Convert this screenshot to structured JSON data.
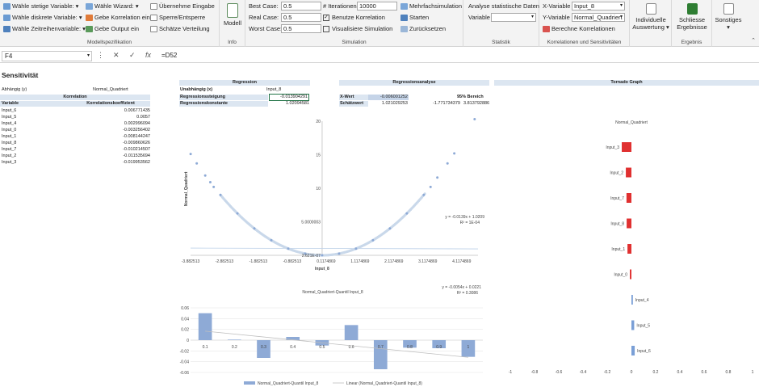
{
  "ribbon": {
    "modell": {
      "items": [
        "Wähle stetige Variable:",
        "Wähle diskrete Variable:",
        "Wähle Zeitreihenvariable:",
        "Wähle Wizard:",
        "Gebe Korrelation ein",
        "Gebe Output ein",
        "Übernehme Eingabe",
        "Sperre/Entsperre",
        "Schätze Verteilung"
      ],
      "label": "Modellspezifikation"
    },
    "info": {
      "button": "Modell",
      "label": "Info"
    },
    "simulation": {
      "best_case_label": "Best Case:",
      "best_case_value": "0.5",
      "real_case_label": "Real Case:",
      "real_case_value": "0.5",
      "worst_case_label": "Worst Case:",
      "worst_case_value": "0.5",
      "iter_label": "# Iterationen:",
      "iter_value": "10000",
      "korr_check": "Benutze Korrelation",
      "vis_check": "Visualisiere Simulation",
      "mehrfach": "Mehrfachsimulation",
      "starten": "Starten",
      "zurueck": "Zurücksetzen",
      "label": "Simulation"
    },
    "statistik": {
      "title": "Analyse statistische Daten",
      "variable_label": "Variable",
      "label": "Statistik"
    },
    "korrelationen": {
      "x_label": "X-Variable",
      "x_value": "Input_8",
      "y_label": "Y-Variable",
      "y_value": "Normal_Quadriert",
      "berechne": "Berechne Korrelationen",
      "label": "Korrelationen und Sensitivitäten"
    },
    "auswertung": {
      "button_line1": "Individuelle",
      "button_line2": "Auswertung"
    },
    "ergebnis": {
      "button_line1": "Schliesse",
      "button_line2": "Ergebnisse",
      "label": "Ergebnis"
    },
    "sonstiges": {
      "button": "Sonstiges"
    }
  },
  "formula_bar": {
    "name_box": "F4",
    "fx": "fx",
    "formula": "=D52"
  },
  "sheet": {
    "title": "Sensitivität",
    "abh_label": "Abhängig (y)",
    "abh_value": "Normal_Quadriert",
    "korr_header": "Korrelation",
    "col_variable": "Variable",
    "col_koeff": "Korrelationskoeffizient",
    "rows": [
      {
        "name": "Input_6",
        "value": "0.006771435"
      },
      {
        "name": "Input_5",
        "value": "0.0057"
      },
      {
        "name": "Input_4",
        "value": "0.002996094"
      },
      {
        "name": "Input_0",
        "value": "-0.003256402"
      },
      {
        "name": "Input_1",
        "value": "-0.008144247"
      },
      {
        "name": "Input_8",
        "value": "-0.009860626"
      },
      {
        "name": "Input_7",
        "value": "-0.010214507"
      },
      {
        "name": "Input_2",
        "value": "-0.011535694"
      },
      {
        "name": "Input_3",
        "value": "-0.019953562"
      }
    ]
  },
  "regression": {
    "header": "Regression",
    "unabh_label": "Unabhängig (x)",
    "unabh_value": "Input_8",
    "steigung_label": "Regressionssteigung",
    "steigung_value": "-0.013904291",
    "konst_label": "Regressionskonstante",
    "konst_value": "1.02094581"
  },
  "regressionsanalyse": {
    "header": "Regressionsanalyse",
    "xwert_label": "X-Wert",
    "xwert_value": "-0.006001252",
    "bereich_label": "95% Bereich",
    "schaetz_label": "Schätzwert",
    "schaetz_value": "1.021029253",
    "low": "-1.771734379",
    "high": "3.813792886"
  },
  "tornado_header": "Tornado Graph",
  "scatter": {
    "ylabel": "Normal_Quadriert",
    "xlabel": "Input_8",
    "xticks": [
      "-3.882513",
      "-2.882513",
      "-1.882513",
      "-0.882513",
      "0.1174869",
      "1.1174869",
      "2.1174869",
      "3.1174869",
      "4.1174869"
    ],
    "yticks": [
      "20",
      "15",
      "10",
      "5.0000003",
      "2.621E-07"
    ],
    "eq1": "y = -0.0139x + 1.0209",
    "eq2": "R² = 1E-04"
  },
  "quantil": {
    "title": "Normal_Quadriert-Quantil Input_8",
    "eq1": "y = -0.0054x + 0.0221",
    "eq2": "R² = 0.3086",
    "yticks": [
      "0.06",
      "0.04",
      "0.02",
      "0",
      "-0.02",
      "-0.04",
      "-0.06"
    ],
    "cats": [
      "0.1",
      "0.2",
      "0.3",
      "0.4",
      "0.5",
      "0.6",
      "0.7",
      "0.8",
      "0.9",
      "1"
    ],
    "legend_bar": "Normal_Quadriert-Quantil Input_8",
    "legend_line": "Linear (Normal_Quadriert-Quantil Input_8)"
  },
  "chart_data": [
    {
      "type": "scatter",
      "title": "",
      "xlabel": "Input_8",
      "ylabel": "Normal_Quadriert",
      "xlim": [
        -3.882513,
        4.6
      ],
      "ylim": [
        0,
        20
      ],
      "trendline": {
        "slope": -0.0139,
        "intercept": 1.0209,
        "r2": "1E-04"
      },
      "points_description_x": [
        -3.88,
        -3.7,
        -3.45,
        -3.3,
        -3.2,
        -3.0,
        -2.5,
        -2.0,
        -1.5,
        -1.0,
        -0.5,
        0.0,
        0.5,
        1.0,
        1.5,
        2.0,
        2.5,
        3.0,
        3.2,
        3.4,
        3.7,
        3.9,
        4.5
      ],
      "points_description_y": [
        15.1,
        13.7,
        11.9,
        10.9,
        10.2,
        9.0,
        6.25,
        4.0,
        2.25,
        1.0,
        0.25,
        0.0,
        0.25,
        1.0,
        2.25,
        4.0,
        6.25,
        9.0,
        10.2,
        11.6,
        13.7,
        15.2,
        20.3
      ]
    },
    {
      "type": "bar",
      "title": "Normal_Quadriert-Quantil Input_8",
      "categories": [
        "0.1",
        "0.2",
        "0.3",
        "0.4",
        "0.5",
        "0.6",
        "0.7",
        "0.8",
        "0.9",
        "1"
      ],
      "series": [
        {
          "name": "Normal_Quadriert-Quantil Input_8",
          "values": [
            0.05,
            0.001,
            -0.033,
            0.006,
            -0.01,
            0.028,
            -0.054,
            -0.014,
            -0.015,
            -0.031
          ]
        }
      ],
      "ylim": [
        -0.06,
        0.06
      ],
      "trendline": {
        "slope": -0.0054,
        "intercept": 0.0221,
        "r2": "0.3086"
      }
    },
    {
      "type": "bar",
      "title": "Normal_Quadriert",
      "orientation": "horizontal",
      "categories": [
        "Input_3",
        "Input_2",
        "Input_7",
        "Input_8",
        "Input_1",
        "Input_0",
        "Input_4",
        "Input_5",
        "Input_6"
      ],
      "values": [
        -0.019953562,
        -0.011535694,
        -0.010214507,
        -0.009860626,
        -0.008144247,
        -0.003256402,
        0.002996094,
        0.0057,
        0.006771435
      ],
      "xticks": [
        "-1",
        "-0.8",
        "-0.6",
        "-0.4",
        "-0.2",
        "0",
        "0.2",
        "0.4",
        "0.6",
        "0.8",
        "1"
      ],
      "xlim": [
        -1,
        1
      ]
    }
  ]
}
